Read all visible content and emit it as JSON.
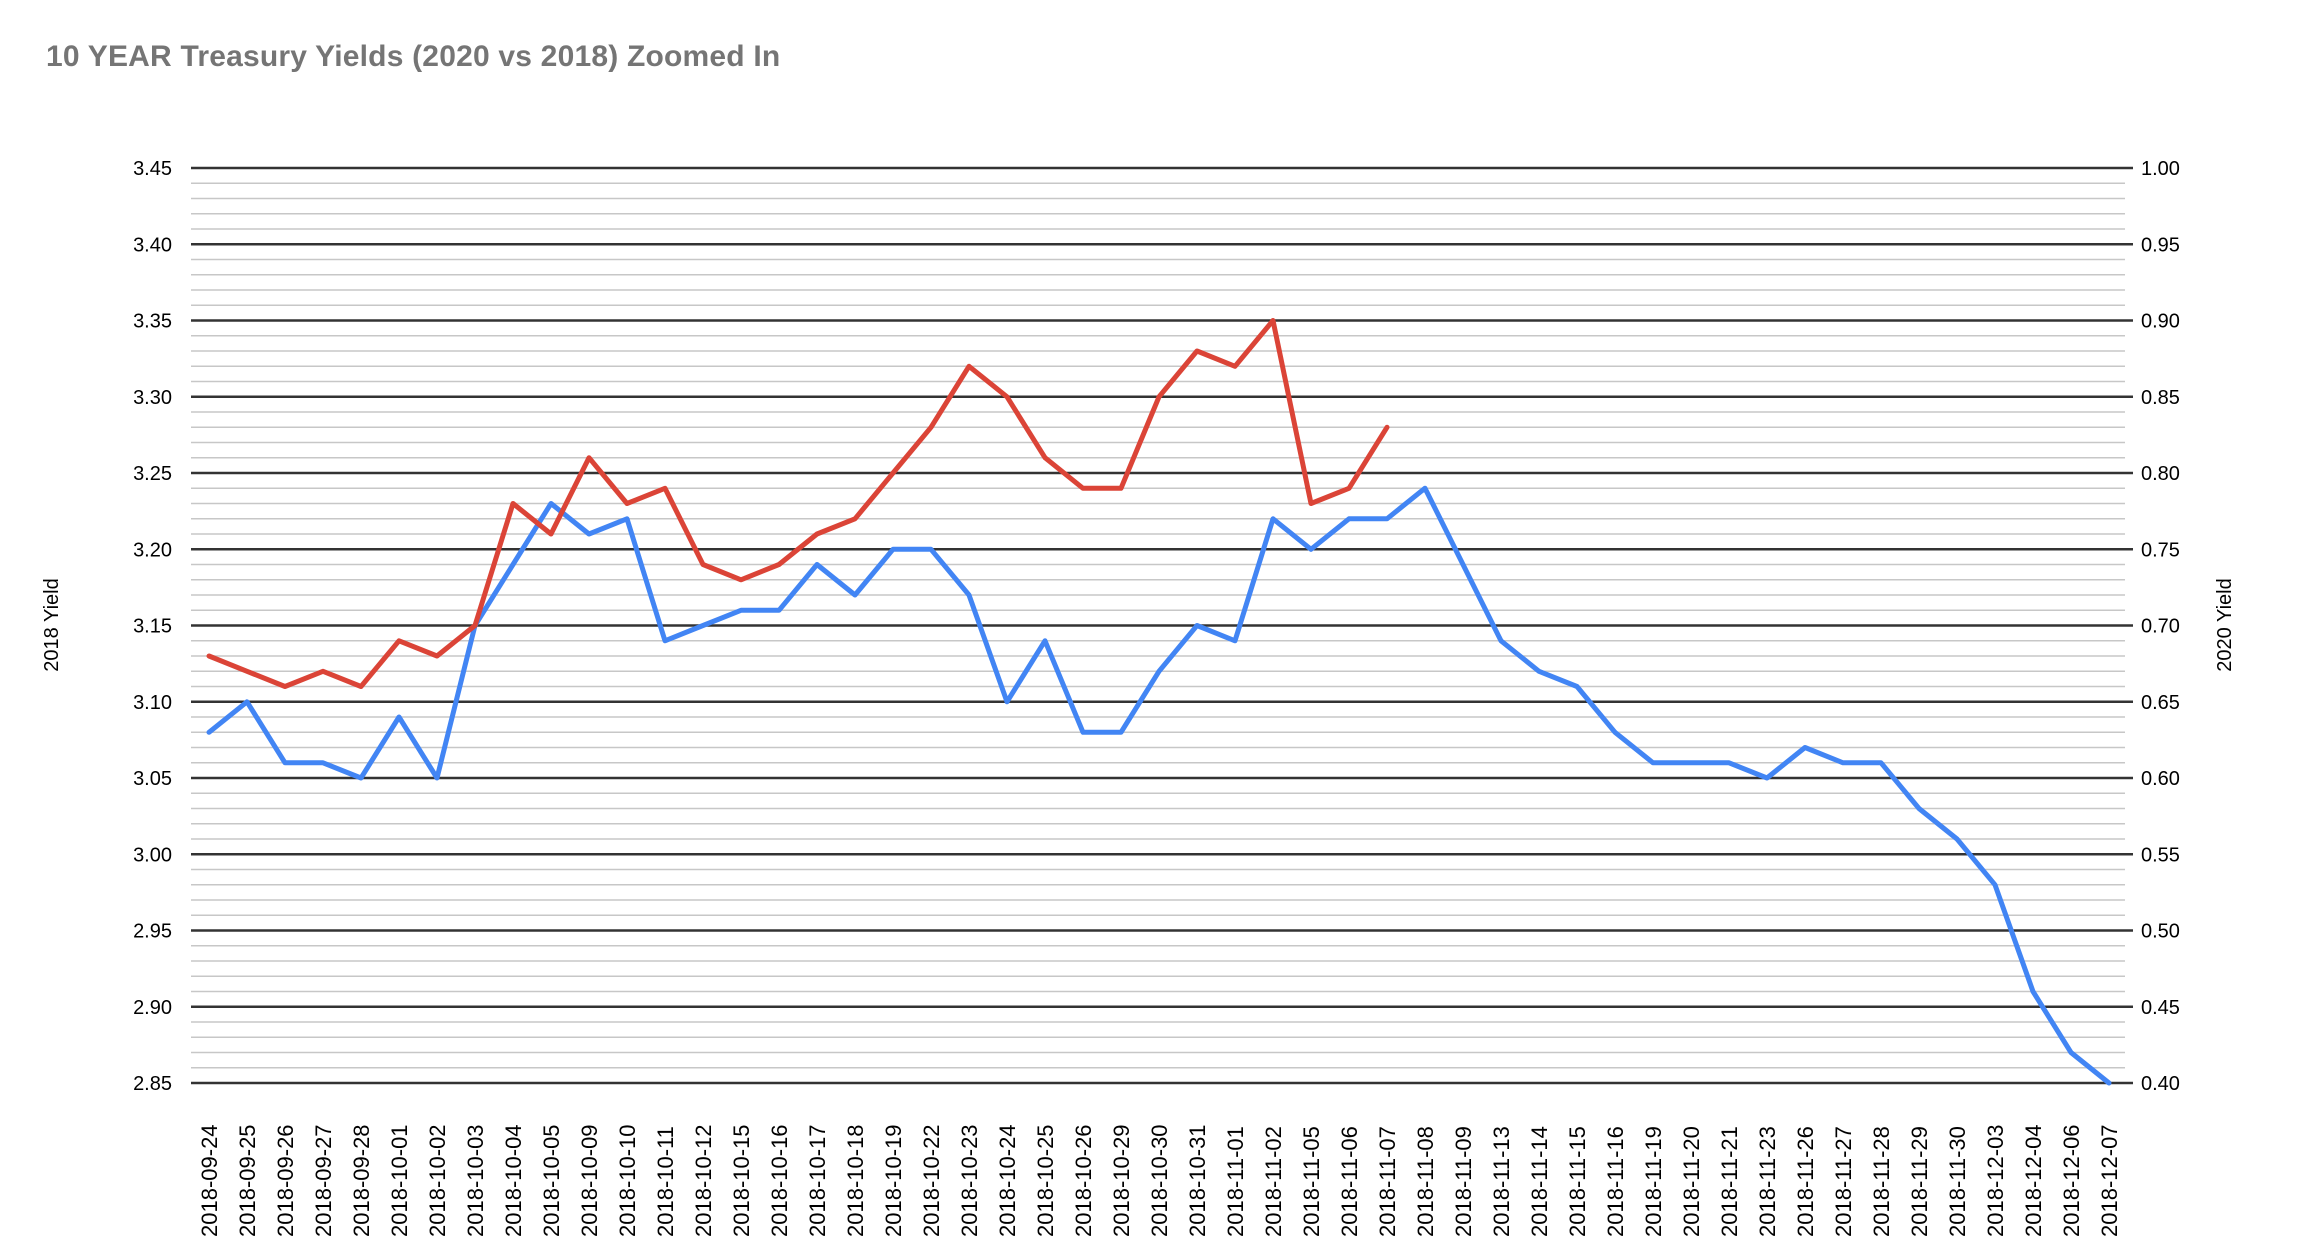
{
  "chart_data": {
    "type": "line",
    "title": "10 YEAR Treasury Yields (2020 vs 2018) Zoomed In",
    "grid": {
      "background": "#ffffff",
      "major_color": "#333333",
      "minor_color": "#c7c7c7",
      "legend": "none"
    },
    "categories": [
      "2018-09-24",
      "2018-09-25",
      "2018-09-26",
      "2018-09-27",
      "2018-09-28",
      "2018-10-01",
      "2018-10-02",
      "2018-10-03",
      "2018-10-04",
      "2018-10-05",
      "2018-10-09",
      "2018-10-10",
      "2018-10-11",
      "2018-10-12",
      "2018-10-15",
      "2018-10-16",
      "2018-10-17",
      "2018-10-18",
      "2018-10-19",
      "2018-10-22",
      "2018-10-23",
      "2018-10-24",
      "2018-10-25",
      "2018-10-26",
      "2018-10-29",
      "2018-10-30",
      "2018-10-31",
      "2018-11-01",
      "2018-11-02",
      "2018-11-05",
      "2018-11-06",
      "2018-11-07",
      "2018-11-08",
      "2018-11-09",
      "2018-11-13",
      "2018-11-14",
      "2018-11-15",
      "2018-11-16",
      "2018-11-19",
      "2018-11-20",
      "2018-11-21",
      "2018-11-23",
      "2018-11-26",
      "2018-11-27",
      "2018-11-28",
      "2018-11-29",
      "2018-11-30",
      "2018-12-03",
      "2018-12-04",
      "2018-12-06",
      "2018-12-07"
    ],
    "series": [
      {
        "name": "2018 Yield",
        "axis": "left",
        "color": "#4285f4",
        "values": [
          3.08,
          3.1,
          3.06,
          3.06,
          3.05,
          3.09,
          3.05,
          3.15,
          3.19,
          3.23,
          3.21,
          3.22,
          3.14,
          3.15,
          3.16,
          3.16,
          3.19,
          3.17,
          3.2,
          3.2,
          3.17,
          3.1,
          3.14,
          3.08,
          3.08,
          3.12,
          3.15,
          3.14,
          3.22,
          3.2,
          3.22,
          3.22,
          3.24,
          3.19,
          3.14,
          3.12,
          3.11,
          3.08,
          3.06,
          3.06,
          3.06,
          3.05,
          3.07,
          3.06,
          3.06,
          3.03,
          3.01,
          2.98,
          2.91,
          2.87,
          2.85
        ]
      },
      {
        "name": "2020 Yield",
        "axis": "right",
        "color": "#db4437",
        "values": [
          0.68,
          0.67,
          0.66,
          0.67,
          0.66,
          0.69,
          0.68,
          0.7,
          0.78,
          0.76,
          0.81,
          0.78,
          0.79,
          0.74,
          0.73,
          0.74,
          0.76,
          0.77,
          0.8,
          0.83,
          0.87,
          0.85,
          0.81,
          0.79,
          0.79,
          0.85,
          0.88,
          0.87,
          0.9,
          0.78,
          0.79,
          0.83
        ]
      }
    ],
    "left_axis": {
      "title": "2018 Yield",
      "min": 2.85,
      "max": 3.45,
      "major_step": 0.05,
      "minor_step": 0.01,
      "ticks": [
        "3.45",
        "3.40",
        "3.35",
        "3.30",
        "3.25",
        "3.20",
        "3.15",
        "3.10",
        "3.05",
        "3.00",
        "2.95",
        "2.90",
        "2.85"
      ]
    },
    "right_axis": {
      "title": "2020 Yield",
      "min": 0.4,
      "max": 1.0,
      "major_step": 0.05,
      "minor_step": 0.01,
      "ticks": [
        "1.00",
        "0.95",
        "0.90",
        "0.85",
        "0.80",
        "0.75",
        "0.70",
        "0.65",
        "0.60",
        "0.55",
        "0.50",
        "0.45",
        "0.40"
      ]
    }
  }
}
